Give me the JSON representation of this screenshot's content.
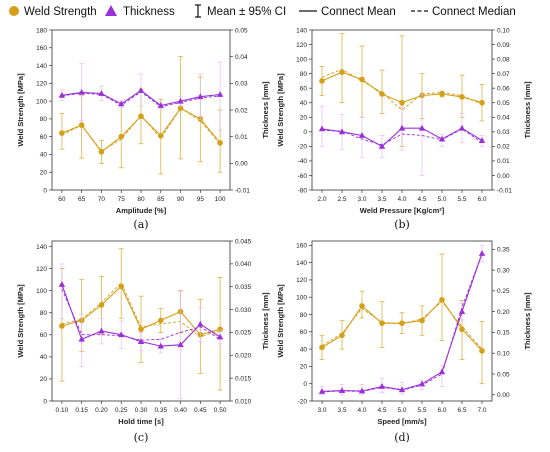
{
  "colors": {
    "weld": "#D4A017",
    "weld_dark": "#B8860B",
    "thick": "#9B30D9",
    "thick_light": "#E3B8F3"
  },
  "legend": {
    "weld": "Weld Strength",
    "thick": "Thickness",
    "ci": "Mean ± 95% CI",
    "mean": "Connect Mean",
    "median": "Connect Median"
  },
  "chart_data": [
    {
      "type": "line",
      "caption": "(a)",
      "xlabel": "Amplitude [%]",
      "ylabel": "Weld Strength [MPa]",
      "ylabel2": "Thickness [mm]",
      "x": [
        60,
        65,
        70,
        75,
        80,
        85,
        90,
        95,
        100
      ],
      "xlim": [
        57.5,
        102.5
      ],
      "ylim": [
        0,
        180
      ],
      "yticks": [
        0,
        20,
        40,
        60,
        80,
        100,
        120,
        140,
        160,
        180
      ],
      "ylim2": [
        -0.01,
        0.05
      ],
      "yticks2": [
        -0.01,
        0.0,
        0.01,
        0.02,
        0.03,
        0.04,
        0.05
      ],
      "series": [
        {
          "name": "Weld Strength",
          "axis": "left",
          "values": [
            64,
            73,
            43,
            60,
            83,
            61,
            92,
            80,
            53
          ],
          "median": [
            62,
            73,
            44,
            57,
            84,
            58,
            92,
            78,
            52
          ],
          "ci_low": [
            46,
            36,
            30,
            25,
            52,
            18,
            35,
            32,
            20
          ],
          "ci_high": [
            86,
            106,
            56,
            95,
            113,
            102,
            150,
            127,
            90
          ]
        },
        {
          "name": "Thickness",
          "axis": "right",
          "values": [
            0.0255,
            0.0266,
            0.0262,
            0.0223,
            0.0273,
            0.0217,
            0.0233,
            0.025,
            0.0258
          ],
          "median": [
            0.0253,
            0.0263,
            0.0258,
            0.0218,
            0.0268,
            0.0212,
            0.0228,
            0.0245,
            0.0253
          ],
          "ci_low": [
            0.0235,
            0.016,
            0.0235,
            0.021,
            0.0215,
            0.0205,
            0.0215,
            0.0165,
            0.0125
          ],
          "ci_high": [
            0.0275,
            0.0375,
            0.029,
            0.0235,
            0.0335,
            0.023,
            0.025,
            0.0335,
            0.038
          ]
        }
      ]
    },
    {
      "type": "line",
      "caption": "(b)",
      "xlabel": "Weld Pressure [Kg/cm²]",
      "ylabel": "Weld Strength [MPa]",
      "ylabel2": "Thickness [mm]",
      "x": [
        2.0,
        2.5,
        3.0,
        3.5,
        4.0,
        4.5,
        5.0,
        5.5,
        6.0
      ],
      "xlim": [
        1.75,
        6.25
      ],
      "ylim": [
        -80,
        140
      ],
      "yticks": [
        -80,
        -60,
        -40,
        -20,
        0,
        20,
        40,
        60,
        80,
        100,
        120,
        140
      ],
      "ylim2": [
        -0.01,
        0.1
      ],
      "yticks2": [
        -0.01,
        0.0,
        0.01,
        0.02,
        0.03,
        0.04,
        0.05,
        0.06,
        0.07,
        0.08,
        0.09,
        0.1
      ],
      "series": [
        {
          "name": "Weld Strength",
          "axis": "left",
          "values": [
            70,
            82,
            72,
            52,
            40,
            50,
            52,
            48,
            40
          ],
          "median": [
            75,
            86,
            70,
            54,
            30,
            52,
            54,
            50,
            38
          ],
          "ci_low": [
            50,
            40,
            20,
            25,
            -20,
            18,
            48,
            20,
            15
          ],
          "ci_high": [
            90,
            135,
            118,
            85,
            132,
            80,
            56,
            78,
            65
          ]
        },
        {
          "name": "Thickness",
          "axis": "right",
          "values": [
            0.032,
            0.03,
            0.0275,
            0.02,
            0.0325,
            0.0325,
            0.025,
            0.0325,
            0.024
          ],
          "median": [
            0.031,
            0.0305,
            0.025,
            0.021,
            0.0285,
            0.0275,
            0.0245,
            0.032,
            0.0225
          ],
          "ci_low": [
            0.02,
            0.018,
            0.0125,
            0.0125,
            0.0175,
            0.0,
            0.02,
            0.0225,
            0.02
          ],
          "ci_high": [
            0.0475,
            0.042,
            0.04,
            0.0275,
            0.0475,
            0.0555,
            0.028,
            0.0425,
            0.0275
          ]
        }
      ]
    },
    {
      "type": "line",
      "caption": "(c)",
      "xlabel": "Hold time [s]",
      "ylabel": "Weld Strength [MPa]",
      "ylabel2": "Thickness [mm]",
      "x": [
        0.1,
        0.15,
        0.2,
        0.25,
        0.3,
        0.35,
        0.4,
        0.45,
        0.5
      ],
      "xlim": [
        0.075,
        0.525
      ],
      "ylim": [
        0,
        145
      ],
      "yticks": [
        0,
        20,
        40,
        60,
        80,
        100,
        120,
        140
      ],
      "ylim2": [
        0.01,
        0.045
      ],
      "yticks2": [
        0.01,
        0.015,
        0.02,
        0.025,
        0.03,
        0.035,
        0.04,
        0.045
      ],
      "series": [
        {
          "name": "Weld Strength",
          "axis": "left",
          "values": [
            68,
            73,
            87,
            104,
            65,
            73,
            81,
            60,
            65
          ],
          "median": [
            70,
            74,
            89,
            107,
            67,
            70,
            72,
            58,
            64
          ],
          "ci_low": [
            18,
            45,
            60,
            75,
            35,
            62,
            62,
            25,
            10
          ],
          "ci_high": [
            120,
            110,
            113,
            138,
            95,
            84,
            100,
            92,
            112
          ]
        },
        {
          "name": "Thickness",
          "axis": "right",
          "values": [
            0.0355,
            0.0235,
            0.0253,
            0.0245,
            0.023,
            0.022,
            0.0223,
            0.0268,
            0.024
          ],
          "median": [
            0.0345,
            0.0245,
            0.0245,
            0.0243,
            0.0233,
            0.0235,
            0.025,
            0.0262,
            0.0235
          ],
          "ci_low": [
            0.028,
            0.0175,
            0.0225,
            0.0215,
            0.021,
            0.0205,
            0.0105,
            0.023,
            0.0225
          ],
          "ci_high": [
            0.04,
            0.029,
            0.028,
            0.0275,
            0.025,
            0.0235,
            0.034,
            0.0305,
            0.0255
          ]
        }
      ]
    },
    {
      "type": "line",
      "caption": "(d)",
      "xlabel": "Speed [mm/s]",
      "ylabel": "Weld Strength [MPa]",
      "ylabel2": "Thickness [mm]",
      "x": [
        3.0,
        3.5,
        4.0,
        4.5,
        5.0,
        5.5,
        6.0,
        6.5,
        7.0
      ],
      "xlim": [
        2.75,
        7.25
      ],
      "ylim": [
        -20,
        165
      ],
      "yticks": [
        -20,
        0,
        20,
        40,
        60,
        80,
        100,
        120,
        140,
        160
      ],
      "ylim2": [
        -0.015,
        0.37
      ],
      "yticks2": [
        0.0,
        0.05,
        0.1,
        0.15,
        0.2,
        0.25,
        0.3,
        0.35
      ],
      "series": [
        {
          "name": "Weld Strength",
          "axis": "left",
          "values": [
            42,
            56,
            90,
            70,
            70,
            73,
            97,
            63,
            38
          ],
          "median": [
            44,
            58,
            87,
            71,
            69,
            75,
            95,
            66,
            40
          ],
          "ci_low": [
            28,
            40,
            76,
            42,
            58,
            56,
            50,
            28,
            0
          ],
          "ci_high": [
            56,
            73,
            107,
            95,
            82,
            90,
            150,
            96,
            72
          ]
        },
        {
          "name": "Thickness",
          "axis": "right",
          "values": [
            0.008,
            0.01,
            0.009,
            0.02,
            0.012,
            0.026,
            0.055,
            0.2,
            0.34
          ],
          "median": [
            0.007,
            0.009,
            0.008,
            0.018,
            0.011,
            0.023,
            0.05,
            0.21,
            0.34
          ],
          "ci_low": [
            0.0,
            0.0,
            0.0,
            0.005,
            0.002,
            0.012,
            0.02,
            0.18,
            0.32
          ],
          "ci_high": [
            0.02,
            0.025,
            0.025,
            0.04,
            0.03,
            0.035,
            0.07,
            0.22,
            0.36
          ]
        }
      ]
    }
  ]
}
